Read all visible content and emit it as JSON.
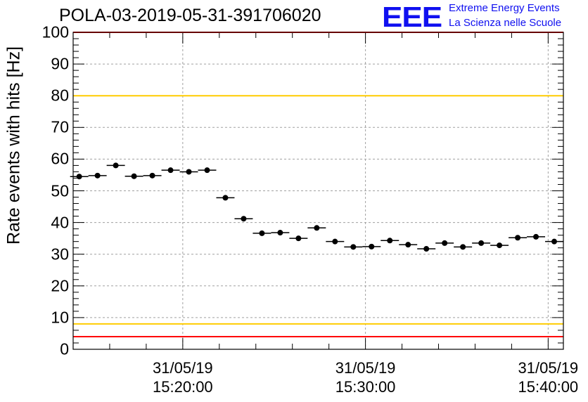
{
  "header": {
    "title": "POLA-03-2019-05-31-391706020",
    "logo_text": "EEE",
    "logo_line1": "Extreme Energy Events",
    "logo_line2": "La Scienza nelle Scuole"
  },
  "chart_data": {
    "type": "scatter",
    "title": "POLA-03-2019-05-31-391706020",
    "xlabel": "",
    "ylabel": "Rate events with hits [Hz]",
    "ylim": [
      0,
      100
    ],
    "yticks": [
      "0",
      "10",
      "20",
      "30",
      "40",
      "50",
      "60",
      "70",
      "80",
      "90",
      "100"
    ],
    "xlim": [
      "2019-05-31 15:14:00",
      "2019-05-31 15:40:50"
    ],
    "xticks": [
      {
        "date": "31/05/19",
        "time": "15:20:00"
      },
      {
        "date": "31/05/19",
        "time": "15:30:00"
      },
      {
        "date": "31/05/19",
        "time": "15:40:00"
      }
    ],
    "bin_width_seconds": 60,
    "grid": true,
    "x": [
      "15:14:20",
      "15:15:20",
      "15:16:20",
      "15:17:20",
      "15:18:20",
      "15:19:20",
      "15:20:20",
      "15:21:20",
      "15:22:20",
      "15:23:20",
      "15:24:20",
      "15:25:20",
      "15:26:20",
      "15:27:20",
      "15:28:20",
      "15:29:20",
      "15:30:20",
      "15:31:20",
      "15:32:20",
      "15:33:20",
      "15:34:20",
      "15:35:20",
      "15:36:20",
      "15:37:20",
      "15:38:20",
      "15:39:20",
      "15:40:20"
    ],
    "values": [
      54.5,
      54.8,
      58.0,
      54.6,
      54.8,
      56.5,
      56.0,
      56.5,
      47.8,
      41.2,
      36.6,
      36.8,
      35.0,
      38.3,
      34.0,
      32.3,
      32.4,
      34.3,
      33.0,
      31.7,
      33.5,
      32.3,
      33.5,
      32.8,
      35.2,
      35.5,
      34.0
    ],
    "reference_lines": [
      {
        "value": 100,
        "color": "#ff0000"
      },
      {
        "value": 80,
        "color": "#ffcc00"
      },
      {
        "value": 8,
        "color": "#ffcc00"
      },
      {
        "value": 4,
        "color": "#ff0000"
      }
    ],
    "marker_color": "#000000"
  }
}
